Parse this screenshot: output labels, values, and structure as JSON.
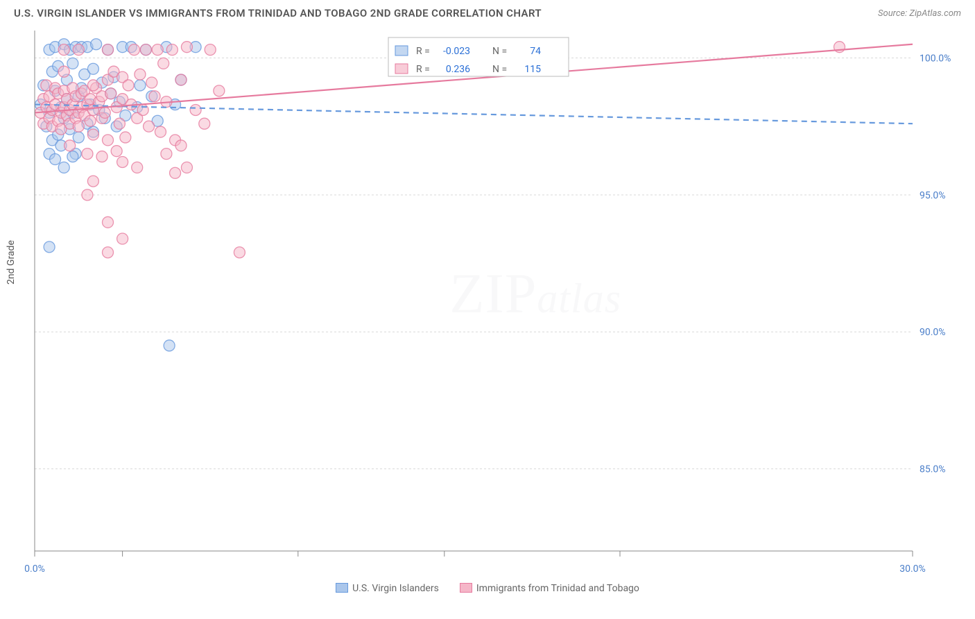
{
  "title": "U.S. VIRGIN ISLANDER VS IMMIGRANTS FROM TRINIDAD AND TOBAGO 2ND GRADE CORRELATION CHART",
  "source": "Source: ZipAtlas.com",
  "ylabel": "2nd Grade",
  "watermark": "ZIPatlas",
  "chart": {
    "type": "scatter",
    "xlim": [
      0,
      30
    ],
    "ylim": [
      82,
      101
    ],
    "ytick_labels": [
      "85.0%",
      "90.0%",
      "95.0%",
      "100.0%"
    ],
    "ytick_values": [
      85,
      90,
      95,
      100
    ],
    "xtick_values": [
      0,
      3,
      9,
      14,
      20,
      30
    ],
    "xtick_labels": [
      "0.0%",
      "",
      "",
      "",
      "",
      "30.0%"
    ],
    "grid_color": "#d9d9d9",
    "axis_color": "#888888",
    "background": "#ffffff",
    "series": [
      {
        "name": "U.S. Virgin Islanders",
        "color_fill": "#aac6eb",
        "color_stroke": "#6699dd",
        "R": "-0.023",
        "N": "74",
        "trend": {
          "x1": 0,
          "y1": 98.3,
          "x2": 30,
          "y2": 97.6,
          "dashed": true
        },
        "points": [
          [
            0.2,
            98.3
          ],
          [
            0.3,
            99.0
          ],
          [
            0.4,
            97.5
          ],
          [
            0.5,
            100.3
          ],
          [
            0.5,
            98.0
          ],
          [
            0.6,
            99.5
          ],
          [
            0.6,
            97.0
          ],
          [
            0.7,
            98.8
          ],
          [
            0.7,
            100.4
          ],
          [
            0.8,
            97.2
          ],
          [
            0.8,
            99.7
          ],
          [
            0.9,
            98.2
          ],
          [
            0.9,
            96.8
          ],
          [
            1.0,
            100.5
          ],
          [
            1.0,
            97.8
          ],
          [
            1.1,
            99.2
          ],
          [
            1.1,
            98.5
          ],
          [
            1.2,
            100.3
          ],
          [
            1.2,
            97.4
          ],
          [
            1.3,
            99.8
          ],
          [
            1.3,
            98.0
          ],
          [
            1.4,
            100.4
          ],
          [
            1.4,
            96.5
          ],
          [
            1.5,
            98.6
          ],
          [
            1.5,
            97.1
          ],
          [
            1.6,
            100.4
          ],
          [
            1.6,
            98.9
          ],
          [
            1.7,
            99.4
          ],
          [
            1.8,
            97.6
          ],
          [
            1.8,
            100.4
          ],
          [
            1.9,
            98.3
          ],
          [
            2.0,
            99.6
          ],
          [
            2.0,
            97.3
          ],
          [
            2.1,
            100.5
          ],
          [
            2.2,
            98.1
          ],
          [
            2.3,
            99.1
          ],
          [
            2.4,
            97.8
          ],
          [
            2.5,
            100.3
          ],
          [
            2.6,
            98.7
          ],
          [
            2.7,
            99.3
          ],
          [
            2.8,
            97.5
          ],
          [
            2.9,
            98.4
          ],
          [
            3.0,
            100.4
          ],
          [
            3.1,
            97.9
          ],
          [
            3.3,
            100.4
          ],
          [
            3.5,
            98.2
          ],
          [
            3.6,
            99.0
          ],
          [
            3.8,
            100.3
          ],
          [
            4.0,
            98.6
          ],
          [
            4.2,
            97.7
          ],
          [
            4.5,
            100.4
          ],
          [
            4.8,
            98.3
          ],
          [
            5.0,
            99.2
          ],
          [
            5.5,
            100.4
          ],
          [
            0.5,
            96.5
          ],
          [
            0.7,
            96.3
          ],
          [
            1.0,
            96.0
          ],
          [
            1.3,
            96.4
          ],
          [
            0.5,
            93.1
          ],
          [
            4.6,
            89.5
          ]
        ]
      },
      {
        "name": "Immigrants from Trinidad and Tobago",
        "color_fill": "#f5b6c8",
        "color_stroke": "#e67a9e",
        "R": "0.236",
        "N": "115",
        "trend": {
          "x1": 0,
          "y1": 98.0,
          "x2": 30,
          "y2": 100.5,
          "dashed": false
        },
        "points": [
          [
            0.2,
            98.0
          ],
          [
            0.3,
            98.5
          ],
          [
            0.3,
            97.6
          ],
          [
            0.4,
            99.0
          ],
          [
            0.4,
            98.2
          ],
          [
            0.5,
            97.8
          ],
          [
            0.5,
            98.6
          ],
          [
            0.6,
            98.1
          ],
          [
            0.6,
            97.5
          ],
          [
            0.7,
            98.9
          ],
          [
            0.7,
            98.3
          ],
          [
            0.8,
            97.7
          ],
          [
            0.8,
            98.7
          ],
          [
            0.9,
            98.0
          ],
          [
            0.9,
            97.4
          ],
          [
            1.0,
            98.8
          ],
          [
            1.0,
            98.2
          ],
          [
            1.1,
            97.9
          ],
          [
            1.1,
            98.5
          ],
          [
            1.2,
            98.1
          ],
          [
            1.2,
            97.6
          ],
          [
            1.3,
            98.9
          ],
          [
            1.3,
            98.3
          ],
          [
            1.4,
            97.8
          ],
          [
            1.4,
            98.6
          ],
          [
            1.5,
            98.0
          ],
          [
            1.5,
            97.5
          ],
          [
            1.6,
            98.7
          ],
          [
            1.6,
            98.2
          ],
          [
            1.7,
            97.9
          ],
          [
            1.7,
            98.8
          ],
          [
            1.8,
            98.3
          ],
          [
            1.9,
            97.7
          ],
          [
            1.9,
            98.5
          ],
          [
            2.0,
            98.1
          ],
          [
            2.0,
            97.2
          ],
          [
            2.1,
            98.9
          ],
          [
            2.2,
            98.4
          ],
          [
            2.3,
            97.8
          ],
          [
            2.3,
            98.6
          ],
          [
            2.4,
            98.0
          ],
          [
            2.5,
            99.2
          ],
          [
            2.5,
            97.0
          ],
          [
            2.6,
            98.7
          ],
          [
            2.7,
            99.5
          ],
          [
            2.8,
            98.2
          ],
          [
            2.9,
            97.6
          ],
          [
            3.0,
            99.3
          ],
          [
            3.0,
            98.5
          ],
          [
            3.1,
            97.1
          ],
          [
            3.2,
            99.0
          ],
          [
            3.3,
            98.3
          ],
          [
            3.4,
            100.3
          ],
          [
            3.5,
            97.8
          ],
          [
            3.6,
            99.4
          ],
          [
            3.7,
            98.1
          ],
          [
            3.8,
            100.3
          ],
          [
            3.9,
            97.5
          ],
          [
            4.0,
            99.1
          ],
          [
            4.1,
            98.6
          ],
          [
            4.2,
            100.3
          ],
          [
            4.3,
            97.3
          ],
          [
            4.4,
            99.8
          ],
          [
            4.5,
            98.4
          ],
          [
            4.7,
            100.3
          ],
          [
            4.8,
            97.0
          ],
          [
            5.0,
            99.2
          ],
          [
            5.2,
            100.4
          ],
          [
            5.5,
            98.1
          ],
          [
            5.8,
            97.6
          ],
          [
            6.0,
            100.3
          ],
          [
            6.3,
            98.8
          ],
          [
            1.0,
            99.5
          ],
          [
            1.5,
            100.3
          ],
          [
            2.0,
            99.0
          ],
          [
            2.5,
            100.3
          ],
          [
            1.2,
            96.8
          ],
          [
            1.8,
            96.5
          ],
          [
            2.3,
            96.4
          ],
          [
            2.8,
            96.6
          ],
          [
            3.0,
            96.2
          ],
          [
            3.5,
            96.0
          ],
          [
            1.0,
            100.3
          ],
          [
            1.8,
            95.0
          ],
          [
            2.5,
            94.0
          ],
          [
            3.0,
            93.4
          ],
          [
            2.0,
            95.5
          ],
          [
            4.5,
            96.5
          ],
          [
            4.8,
            95.8
          ],
          [
            5.0,
            96.8
          ],
          [
            5.2,
            96.0
          ],
          [
            2.5,
            92.9
          ],
          [
            7.0,
            92.9
          ],
          [
            27.5,
            100.4
          ]
        ]
      }
    ]
  },
  "legend_top": {
    "rows": [
      {
        "swatch": 0,
        "R_label": "R =",
        "R": "-0.023",
        "N_label": "N =",
        "N": "74"
      },
      {
        "swatch": 1,
        "R_label": "R =",
        "R": "0.236",
        "N_label": "N =",
        "N": "115"
      }
    ]
  },
  "legend_bottom": [
    {
      "swatch": 0,
      "label": "U.S. Virgin Islanders"
    },
    {
      "swatch": 1,
      "label": "Immigrants from Trinidad and Tobago"
    }
  ]
}
